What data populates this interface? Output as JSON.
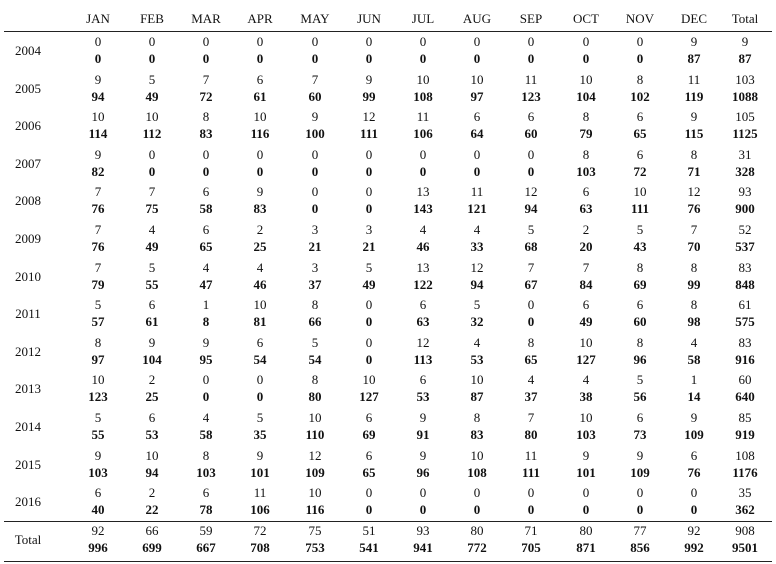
{
  "table": {
    "header": [
      "JAN",
      "FEB",
      "MAR",
      "APR",
      "MAY",
      "JUN",
      "JUL",
      "AUG",
      "SEP",
      "OCT",
      "NOV",
      "DEC",
      "Total"
    ],
    "rows": [
      {
        "label": "2004",
        "top": [
          0,
          0,
          0,
          0,
          0,
          0,
          0,
          0,
          0,
          0,
          0,
          9,
          9
        ],
        "bottom": [
          0,
          0,
          0,
          0,
          0,
          0,
          0,
          0,
          0,
          0,
          0,
          87,
          87
        ]
      },
      {
        "label": "2005",
        "top": [
          9,
          5,
          7,
          6,
          7,
          9,
          10,
          10,
          11,
          10,
          8,
          11,
          103
        ],
        "bottom": [
          94,
          49,
          72,
          61,
          60,
          99,
          108,
          97,
          123,
          104,
          102,
          119,
          1088
        ]
      },
      {
        "label": "2006",
        "top": [
          10,
          10,
          8,
          10,
          9,
          12,
          11,
          6,
          6,
          8,
          6,
          9,
          105
        ],
        "bottom": [
          114,
          112,
          83,
          116,
          100,
          111,
          106,
          64,
          60,
          79,
          65,
          115,
          1125
        ]
      },
      {
        "label": "2007",
        "top": [
          9,
          0,
          0,
          0,
          0,
          0,
          0,
          0,
          0,
          8,
          6,
          8,
          31
        ],
        "bottom": [
          82,
          0,
          0,
          0,
          0,
          0,
          0,
          0,
          0,
          103,
          72,
          71,
          328
        ]
      },
      {
        "label": "2008",
        "top": [
          7,
          7,
          6,
          9,
          0,
          0,
          13,
          11,
          12,
          6,
          10,
          12,
          93
        ],
        "bottom": [
          76,
          75,
          58,
          83,
          0,
          0,
          143,
          121,
          94,
          63,
          111,
          76,
          900
        ]
      },
      {
        "label": "2009",
        "top": [
          7,
          4,
          6,
          2,
          3,
          3,
          4,
          4,
          5,
          2,
          5,
          7,
          52
        ],
        "bottom": [
          76,
          49,
          65,
          25,
          21,
          21,
          46,
          33,
          68,
          20,
          43,
          70,
          537
        ]
      },
      {
        "label": "2010",
        "top": [
          7,
          5,
          4,
          4,
          3,
          5,
          13,
          12,
          7,
          7,
          8,
          8,
          83
        ],
        "bottom": [
          79,
          55,
          47,
          46,
          37,
          49,
          122,
          94,
          67,
          84,
          69,
          99,
          848
        ]
      },
      {
        "label": "2011",
        "top": [
          5,
          6,
          1,
          10,
          8,
          0,
          6,
          5,
          0,
          6,
          6,
          8,
          61
        ],
        "bottom": [
          57,
          61,
          8,
          81,
          66,
          0,
          63,
          32,
          0,
          49,
          60,
          98,
          575
        ]
      },
      {
        "label": "2012",
        "top": [
          8,
          9,
          9,
          6,
          5,
          0,
          12,
          4,
          8,
          10,
          8,
          4,
          83
        ],
        "bottom": [
          97,
          104,
          95,
          54,
          54,
          0,
          113,
          53,
          65,
          127,
          96,
          58,
          916
        ]
      },
      {
        "label": "2013",
        "top": [
          10,
          2,
          0,
          0,
          8,
          10,
          6,
          10,
          4,
          4,
          5,
          1,
          60
        ],
        "bottom": [
          123,
          25,
          0,
          0,
          80,
          127,
          53,
          87,
          37,
          38,
          56,
          14,
          640
        ]
      },
      {
        "label": "2014",
        "top": [
          5,
          6,
          4,
          5,
          10,
          6,
          9,
          8,
          7,
          10,
          6,
          9,
          85
        ],
        "bottom": [
          55,
          53,
          58,
          35,
          110,
          69,
          91,
          83,
          80,
          103,
          73,
          109,
          919
        ]
      },
      {
        "label": "2015",
        "top": [
          9,
          10,
          8,
          9,
          12,
          6,
          9,
          10,
          11,
          9,
          9,
          6,
          108
        ],
        "bottom": [
          103,
          94,
          103,
          101,
          109,
          65,
          96,
          108,
          111,
          101,
          109,
          76,
          1176
        ]
      },
      {
        "label": "2016",
        "top": [
          6,
          2,
          6,
          11,
          10,
          0,
          0,
          0,
          0,
          0,
          0,
          0,
          35
        ],
        "bottom": [
          40,
          22,
          78,
          106,
          116,
          0,
          0,
          0,
          0,
          0,
          0,
          0,
          362
        ]
      },
      {
        "label": "Total",
        "top": [
          92,
          66,
          59,
          72,
          75,
          51,
          93,
          80,
          71,
          80,
          77,
          92,
          908
        ],
        "bottom": [
          996,
          699,
          667,
          708,
          753,
          541,
          941,
          772,
          705,
          871,
          856,
          992,
          9501
        ]
      }
    ]
  }
}
